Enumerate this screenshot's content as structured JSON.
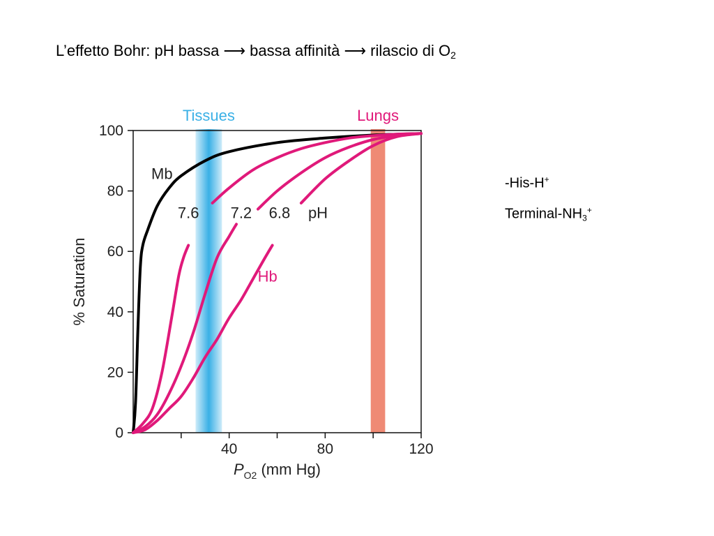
{
  "title": {
    "main": "L’effetto Bohr: pH bassa ⟶ bassa affinità ⟶ rilascio di O",
    "sub": "2"
  },
  "side_labels": {
    "line1_text": "-His-H",
    "line1_sup": "+",
    "line2_text": "Terminal-NH",
    "line2_sub": "3",
    "line2_sup": "+"
  },
  "colors": {
    "mb_curve": "#000000",
    "hb_curves": "#e0197a",
    "tissues": "#3ab0e6",
    "lungs": "#ef8a75"
  },
  "chart_data": {
    "type": "line",
    "xlabel_main": "P",
    "xlabel_sub": "O2",
    "xlabel_unit": "(mm Hg)",
    "ylabel": "% Saturation",
    "xlim": [
      0,
      120
    ],
    "ylim": [
      0,
      100
    ],
    "x_ticks": [
      {
        "value": 40,
        "label": "40"
      },
      {
        "value": 80,
        "label": "80"
      },
      {
        "value": 120,
        "label": "120"
      }
    ],
    "x_minor_ticks": [
      20,
      60,
      100
    ],
    "y_ticks": [
      {
        "value": 0,
        "label": "0"
      },
      {
        "value": 20,
        "label": "20"
      },
      {
        "value": 40,
        "label": "40"
      },
      {
        "value": 60,
        "label": "60"
      },
      {
        "value": 80,
        "label": "80"
      },
      {
        "value": 100,
        "label": "100"
      }
    ],
    "bands": [
      {
        "name": "Tissues",
        "from": 26,
        "to": 37
      },
      {
        "name": "Lungs",
        "from": 99,
        "to": 105
      }
    ],
    "series": [
      {
        "name": "Mb",
        "points": [
          [
            0,
            0
          ],
          [
            1,
            10
          ],
          [
            2,
            35
          ],
          [
            3,
            55
          ],
          [
            4,
            62
          ],
          [
            6,
            67
          ],
          [
            10,
            75
          ],
          [
            15,
            81
          ],
          [
            20,
            85
          ],
          [
            30,
            90
          ],
          [
            40,
            93
          ],
          [
            60,
            96
          ],
          [
            80,
            97.5
          ],
          [
            100,
            98.5
          ],
          [
            120,
            99
          ]
        ]
      },
      {
        "name": "7.6",
        "points": [
          [
            0,
            0
          ],
          [
            4,
            3
          ],
          [
            8,
            8
          ],
          [
            12,
            20
          ],
          [
            16,
            38
          ],
          [
            19,
            52
          ],
          [
            21,
            58
          ],
          [
            23,
            62
          ]
        ]
      },
      {
        "name": "7.2",
        "points": [
          [
            0,
            0
          ],
          [
            5,
            2
          ],
          [
            10,
            6
          ],
          [
            15,
            13
          ],
          [
            20,
            22
          ],
          [
            25,
            33
          ],
          [
            30,
            46
          ],
          [
            35,
            58
          ],
          [
            40,
            65
          ],
          [
            43,
            69
          ]
        ]
      },
      {
        "name": "6.8",
        "points": [
          [
            0,
            0
          ],
          [
            5,
            1
          ],
          [
            10,
            4
          ],
          [
            15,
            8
          ],
          [
            20,
            12
          ],
          [
            25,
            18
          ],
          [
            30,
            25
          ],
          [
            35,
            31
          ],
          [
            40,
            38
          ],
          [
            45,
            44
          ],
          [
            50,
            51
          ],
          [
            55,
            58
          ],
          [
            58,
            62
          ]
        ]
      },
      {
        "name": "7.6 upper",
        "points": [
          [
            33,
            76
          ],
          [
            40,
            81
          ],
          [
            50,
            87
          ],
          [
            60,
            91
          ],
          [
            70,
            94
          ],
          [
            80,
            96
          ],
          [
            90,
            97.5
          ],
          [
            100,
            98.3
          ],
          [
            110,
            98.8
          ],
          [
            120,
            99
          ]
        ]
      },
      {
        "name": "7.2 upper",
        "points": [
          [
            52,
            74
          ],
          [
            60,
            80
          ],
          [
            70,
            86
          ],
          [
            80,
            91
          ],
          [
            90,
            94.5
          ],
          [
            100,
            97
          ],
          [
            110,
            98.3
          ],
          [
            120,
            99
          ]
        ]
      },
      {
        "name": "6.8 upper",
        "points": [
          [
            70,
            76
          ],
          [
            80,
            84
          ],
          [
            90,
            90
          ],
          [
            100,
            95
          ],
          [
            110,
            98
          ],
          [
            120,
            99
          ]
        ]
      }
    ],
    "curve_labels": [
      {
        "text": "Mb",
        "x": 12,
        "y": 84,
        "color": "mb"
      },
      {
        "text": "7.6",
        "x": 23,
        "y": 71,
        "color": "mb"
      },
      {
        "text": "7.2",
        "x": 45,
        "y": 71,
        "color": "mb"
      },
      {
        "text": "6.8",
        "x": 61,
        "y": 71,
        "color": "mb"
      },
      {
        "text": "pH",
        "x": 77,
        "y": 71,
        "color": "mb"
      },
      {
        "text": "Hb",
        "x": 56,
        "y": 50,
        "color": "hb"
      }
    ]
  }
}
